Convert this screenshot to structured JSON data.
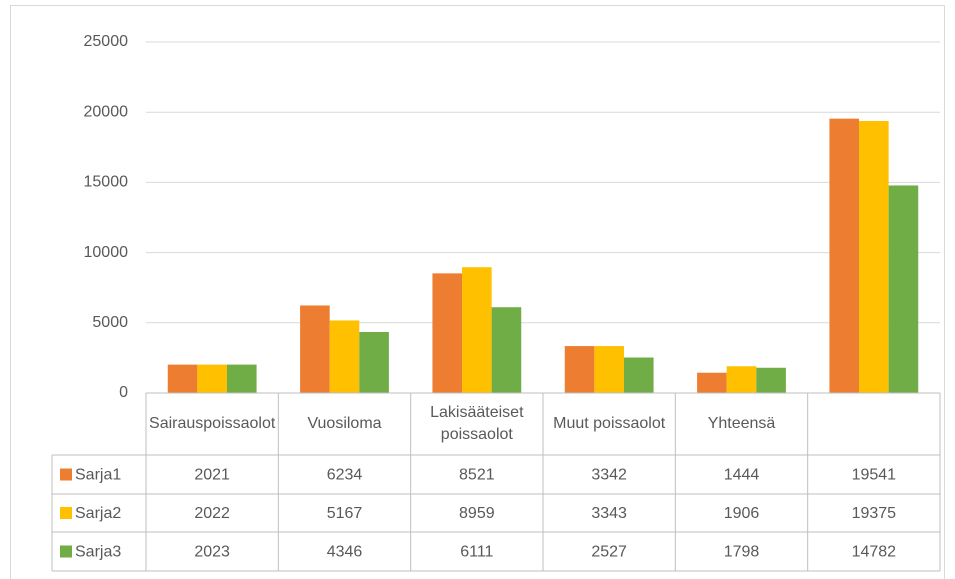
{
  "chart_data": {
    "type": "bar",
    "categories": [
      "Sairauspoissaolot",
      "Vuosiloma",
      "Lakisääteiset poissaolot",
      "Muut poissaolot",
      "Yhteensä",
      null
    ],
    "series": [
      {
        "name": "Sarja1",
        "color": "#ed7d31",
        "values": [
          2021,
          6234,
          8521,
          3342,
          1444,
          19541
        ]
      },
      {
        "name": "Sarja2",
        "color": "#ffc000",
        "values": [
          2022,
          5167,
          8959,
          3343,
          1906,
          19375
        ]
      },
      {
        "name": "Sarja3",
        "color": "#70ad47",
        "values": [
          2023,
          4346,
          6111,
          2527,
          1798,
          14782
        ]
      }
    ],
    "ylim": [
      0,
      25000
    ],
    "yticks": [
      0,
      5000,
      10000,
      15000,
      20000,
      25000
    ],
    "grid": true,
    "data_table": true
  }
}
